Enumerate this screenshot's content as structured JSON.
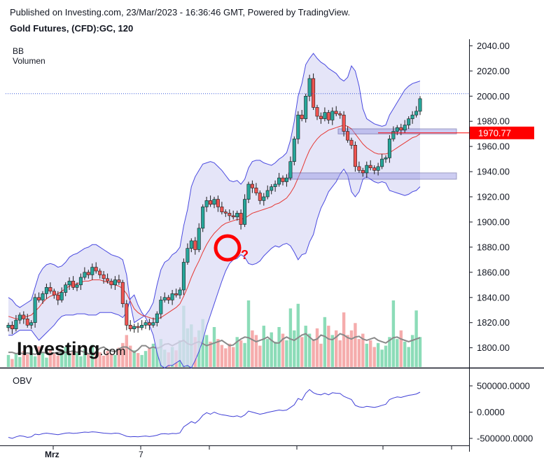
{
  "header": {
    "published": "Published on Investing.com, 23/Mar/2023 - 16:36:46 GMT, Powered by TradingView.",
    "symbol": "Gold Futures, (CFD):GC, 120"
  },
  "indicators": {
    "bb_label": "BB",
    "volume_label": "Volumen",
    "obv_label": "OBV"
  },
  "logo": {
    "text": "Investing",
    "suffix": ".com"
  },
  "annotation": {
    "mark": "?"
  },
  "colors": {
    "up": "#26a69a",
    "down": "#ef5350",
    "band_fill": "#dcdcf5",
    "band_line": "#4a4ae0",
    "basis": "#e53935",
    "price_tag": "#ff0000",
    "obv_line": "#3f3fd6",
    "zone_fill": "#9c9ce6",
    "circle": "#ff0000"
  },
  "chart_data": [
    {
      "type": "candlestick",
      "title": "Gold Futures, (CFD):GC, 120",
      "y_axis_ticks": [
        1800,
        1820,
        1840,
        1860,
        1880,
        1900,
        1920,
        1940,
        1960,
        1980,
        2000,
        2020,
        2040
      ],
      "ylim": [
        1787,
        2043
      ],
      "x_tick_labels": [
        "Mrz",
        "7"
      ],
      "last_price": "1970.77",
      "last_price_value": 1970.77,
      "dotted_level": 2002,
      "support_zones": [
        [
          1970,
          1974
        ],
        [
          1934,
          1939
        ]
      ],
      "close_path": [
        1818,
        1815,
        1822,
        1826,
        1823,
        1818,
        1820,
        1840,
        1838,
        1843,
        1848,
        1845,
        1842,
        1838,
        1844,
        1850,
        1853,
        1848,
        1850,
        1856,
        1860,
        1858,
        1864,
        1861,
        1858,
        1855,
        1853,
        1850,
        1854,
        1852,
        1835,
        1818,
        1815,
        1817,
        1816,
        1818,
        1820,
        1818,
        1820,
        1827,
        1838,
        1840,
        1838,
        1843,
        1842,
        1846,
        1868,
        1879,
        1885,
        1878,
        1895,
        1912,
        1917,
        1914,
        1918,
        1912,
        1908,
        1907,
        1905,
        1904,
        1907,
        1898,
        1918,
        1930,
        1927,
        1923,
        1917,
        1920,
        1925,
        1928,
        1930,
        1935,
        1932,
        1935,
        1948,
        1966,
        1985,
        1982,
        2000,
        2014,
        1991,
        1984,
        1982,
        1987,
        1981,
        1988,
        1986,
        1985,
        1972,
        1965,
        1961,
        1944,
        1941,
        1939,
        1945,
        1943,
        1941,
        1944,
        1950,
        1951,
        1966,
        1972,
        1975,
        1973,
        1977,
        1982,
        1985,
        1988,
        1998
      ],
      "upper_band": [
        1840,
        1838,
        1834,
        1832,
        1834,
        1836,
        1838,
        1848,
        1858,
        1863,
        1866,
        1867,
        1866,
        1864,
        1865,
        1868,
        1872,
        1874,
        1875,
        1877,
        1879,
        1880,
        1882,
        1882,
        1880,
        1878,
        1876,
        1874,
        1873,
        1872,
        1870,
        1858,
        1835,
        1820,
        1822,
        1824,
        1826,
        1830,
        1836,
        1850,
        1862,
        1868,
        1870,
        1874,
        1876,
        1880,
        1897,
        1910,
        1928,
        1936,
        1941,
        1946,
        1947,
        1948,
        1947,
        1944,
        1941,
        1937,
        1933,
        1932,
        1933,
        1930,
        1934,
        1943,
        1948,
        1949,
        1949,
        1947,
        1946,
        1945,
        1947,
        1950,
        1952,
        1955,
        1965,
        1980,
        2000,
        2010,
        2025,
        2030,
        2034,
        2030,
        2027,
        2025,
        2022,
        2020,
        2018,
        2014,
        2012,
        2015,
        2024,
        2020,
        2008,
        1990,
        1982,
        1980,
        1978,
        1977,
        1976,
        1977,
        1985,
        1990,
        1995,
        2000,
        2005,
        2008,
        2010,
        2011,
        2012
      ],
      "basis": [
        1825,
        1824,
        1823,
        1823,
        1824,
        1825,
        1826,
        1829,
        1832,
        1836,
        1839,
        1841,
        1842,
        1843,
        1845,
        1847,
        1849,
        1850,
        1851,
        1852,
        1853,
        1853,
        1854,
        1854,
        1854,
        1853,
        1852,
        1851,
        1850,
        1849,
        1847,
        1843,
        1837,
        1831,
        1828,
        1826,
        1825,
        1824,
        1823,
        1823,
        1824,
        1826,
        1828,
        1830,
        1832,
        1835,
        1841,
        1848,
        1856,
        1863,
        1869,
        1876,
        1882,
        1887,
        1891,
        1894,
        1897,
        1899,
        1900,
        1901,
        1902,
        1902,
        1903,
        1905,
        1907,
        1908,
        1909,
        1910,
        1911,
        1912,
        1914,
        1915,
        1917,
        1919,
        1923,
        1928,
        1935,
        1942,
        1950,
        1957,
        1962,
        1966,
        1969,
        1971,
        1973,
        1974,
        1975,
        1976,
        1977,
        1976,
        1974,
        1970,
        1966,
        1962,
        1959,
        1957,
        1955,
        1954,
        1954,
        1954,
        1955,
        1957,
        1959,
        1961,
        1963,
        1965,
        1967,
        1968,
        1970
      ],
      "lower_band": [
        1810,
        1810,
        1812,
        1814,
        1814,
        1814,
        1814,
        1810,
        1806,
        1809,
        1812,
        1815,
        1818,
        1822,
        1825,
        1826,
        1826,
        1826,
        1827,
        1827,
        1827,
        1826,
        1826,
        1826,
        1828,
        1828,
        1828,
        1828,
        1827,
        1826,
        1824,
        1828,
        1839,
        1842,
        1834,
        1828,
        1824,
        1818,
        1810,
        1796,
        1786,
        1784,
        1786,
        1786,
        1788,
        1790,
        1785,
        1786,
        1784,
        1790,
        1797,
        1806,
        1817,
        1826,
        1835,
        1844,
        1853,
        1861,
        1867,
        1870,
        1871,
        1874,
        1872,
        1867,
        1866,
        1867,
        1869,
        1873,
        1876,
        1879,
        1881,
        1880,
        1882,
        1883,
        1881,
        1876,
        1870,
        1874,
        1875,
        1884,
        1890,
        1902,
        1911,
        1917,
        1924,
        1928,
        1932,
        1938,
        1942,
        1937,
        1924,
        1920,
        1924,
        1934,
        1936,
        1934,
        1932,
        1931,
        1932,
        1931,
        1925,
        1924,
        1923,
        1922,
        1921,
        1922,
        1924,
        1925,
        1928
      ]
    },
    {
      "type": "bar",
      "title": "Volumen",
      "values": [
        0.18,
        0.12,
        0.21,
        0.15,
        0.24,
        0.19,
        0.28,
        0.16,
        0.31,
        0.22,
        0.14,
        0.26,
        0.2,
        0.17,
        0.23,
        0.3,
        0.18,
        0.25,
        0.21,
        0.16,
        0.27,
        0.2,
        0.33,
        0.19,
        0.22,
        0.17,
        0.24,
        0.2,
        0.18,
        0.29,
        0.36,
        0.48,
        0.32,
        0.25,
        0.21,
        0.18,
        0.24,
        0.28,
        0.35,
        0.3,
        0.42,
        0.26,
        0.22,
        0.3,
        0.25,
        0.4,
        0.92,
        0.58,
        0.64,
        0.45,
        0.55,
        0.72,
        0.48,
        0.38,
        0.6,
        0.42,
        0.33,
        0.28,
        0.35,
        0.3,
        0.45,
        0.4,
        0.36,
        1.0,
        0.55,
        0.48,
        0.32,
        0.62,
        0.42,
        0.52,
        0.38,
        0.6,
        0.5,
        0.4,
        0.88,
        0.55,
        0.95,
        0.45,
        0.62,
        0.5,
        0.42,
        0.58,
        0.35,
        0.75,
        0.62,
        0.48,
        0.55,
        0.4,
        0.82,
        0.48,
        0.55,
        0.66,
        0.42,
        0.5,
        0.35,
        0.4,
        0.3,
        0.36,
        0.26,
        0.32,
        0.45,
        1.0,
        0.42,
        0.55,
        0.38,
        0.3,
        0.48,
        0.85,
        0.45
      ],
      "average": [
        0.22,
        0.22,
        0.2,
        0.21,
        0.2,
        0.21,
        0.2,
        0.19,
        0.21,
        0.22,
        0.21,
        0.2,
        0.21,
        0.22,
        0.23,
        0.22,
        0.23,
        0.24,
        0.22,
        0.24,
        0.22,
        0.2,
        0.19,
        0.23,
        0.28,
        0.3,
        0.26,
        0.24,
        0.23,
        0.27,
        0.3,
        0.3,
        0.26,
        0.22,
        0.26,
        0.32,
        0.32,
        0.28,
        0.3,
        0.28,
        0.3,
        0.34,
        0.35,
        0.32,
        0.35,
        0.38,
        0.4,
        0.35,
        0.33,
        0.36,
        0.38,
        0.35,
        0.32,
        0.34,
        0.36,
        0.38,
        0.4,
        0.36,
        0.32,
        0.33,
        0.38,
        0.42,
        0.45,
        0.44,
        0.41,
        0.38,
        0.4,
        0.42,
        0.45,
        0.4,
        0.36,
        0.36,
        0.42,
        0.45,
        0.42,
        0.4,
        0.44,
        0.48,
        0.5,
        0.45,
        0.4,
        0.42,
        0.48,
        0.46,
        0.42,
        0.41,
        0.45,
        0.5,
        0.48,
        0.44,
        0.42,
        0.45,
        0.46,
        0.42,
        0.4,
        0.42,
        0.44,
        0.4,
        0.38,
        0.36,
        0.4,
        0.44,
        0.45,
        0.42,
        0.4,
        0.38,
        0.4,
        0.42,
        0.44
      ]
    },
    {
      "type": "line",
      "title": "OBV",
      "y_axis_ticks": [
        "500000.0000",
        "0.0000",
        "-500000.0000"
      ],
      "y_axis_values": [
        500000,
        0,
        -500000
      ],
      "ylim": [
        -620000,
        680000
      ],
      "values": [
        -480000,
        -500000,
        -470000,
        -450000,
        -460000,
        -480000,
        -470000,
        -420000,
        -430000,
        -410000,
        -400000,
        -410000,
        -420000,
        -430000,
        -415000,
        -400000,
        -395000,
        -405000,
        -400000,
        -390000,
        -380000,
        -385000,
        -375000,
        -380000,
        -390000,
        -400000,
        -405000,
        -410000,
        -400000,
        -405000,
        -430000,
        -460000,
        -470000,
        -465000,
        -470000,
        -462000,
        -455000,
        -465000,
        -455000,
        -440000,
        -415000,
        -410000,
        -418000,
        -405000,
        -410000,
        -395000,
        -280000,
        -230000,
        -180000,
        -210000,
        -150000,
        -60000,
        -10000,
        -40000,
        0,
        -30000,
        -50000,
        -60000,
        -75000,
        -85000,
        -70000,
        -95000,
        -55000,
        20000,
        0,
        -20000,
        -40000,
        -25000,
        -5000,
        10000,
        25000,
        40000,
        30000,
        40000,
        90000,
        140000,
        260000,
        230000,
        360000,
        430000,
        370000,
        340000,
        330000,
        360000,
        330000,
        370000,
        360000,
        355000,
        300000,
        270000,
        240000,
        130000,
        100000,
        90000,
        110000,
        100000,
        90000,
        105000,
        130000,
        150000,
        240000,
        270000,
        290000,
        280000,
        300000,
        320000,
        330000,
        345000,
        380000
      ]
    }
  ]
}
